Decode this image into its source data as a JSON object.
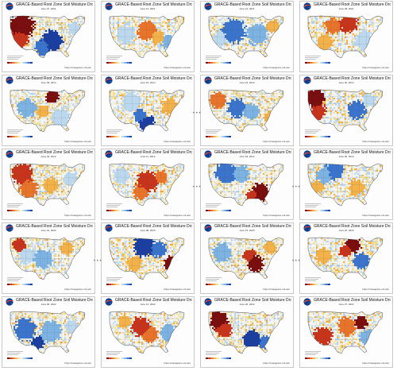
{
  "panel_title": "GRACE-Based Root Zone Soil  Moisture Drought Indicator",
  "panel_url": "https://nasagrace.unl.edu",
  "logo_name": "nasa-logo",
  "palette": {
    "dry_extreme": "#7a0d0d",
    "dry_strong": "#c8341b",
    "dry_moderate": "#e8742c",
    "dry_light": "#f3b14a",
    "abnormal": "#f7e08c",
    "normal": "#f4f4f2",
    "wet_light": "#bcd8ee",
    "wet_moderate": "#7db3e2",
    "wet_strong": "#3a74cc",
    "wet_extreme": "#1b3fa0"
  },
  "separator_glyph": "• • •",
  "panels": [
    {
      "date": "June 07, 2021",
      "pattern": "dry_west_wet_south"
    },
    {
      "date": "June 14, 2021",
      "pattern": "mixed_dry_center"
    },
    {
      "date": "June 21, 2021",
      "pattern": "wet_dominant"
    },
    {
      "date": "June 28, 2021",
      "pattern": "dry_north_mixed"
    },
    {
      "date": "June 09, 2014",
      "pattern": "dry_north_wet_south"
    },
    {
      "date": "June 16, 2014",
      "pattern": "wet_texas"
    },
    {
      "date": "June 23, 2014",
      "pattern": "wet_midwest"
    },
    {
      "date": "June 30, 2014",
      "pattern": "dry_west_wet_east"
    },
    {
      "date": "June 04, 2012",
      "pattern": "dry_west_orange"
    },
    {
      "date": "June 11, 2012",
      "pattern": "dry_center"
    },
    {
      "date": "June 18, 2012",
      "pattern": "wet_north_dry_southeast"
    },
    {
      "date": "June 25, 2012",
      "pattern": "wet_north_mild"
    },
    {
      "date": "June 01, 2020",
      "pattern": "wet_center_light"
    },
    {
      "date": "June 08, 2020",
      "pattern": "wet_north_dry_east"
    },
    {
      "date": "June 15, 2020",
      "pattern": "dry_arkansas"
    },
    {
      "date": "June 22, 2020",
      "pattern": "dry_upper_midwest"
    },
    {
      "date": "June 06, 2022",
      "pattern": "wet_broad"
    },
    {
      "date": "June 13, 2022",
      "pattern": "dry_center_band"
    },
    {
      "date": "June 20, 2022",
      "pattern": "dry_northwest_wet_south"
    },
    {
      "date": "June 27, 2022",
      "pattern": "dry_southwest"
    }
  ]
}
